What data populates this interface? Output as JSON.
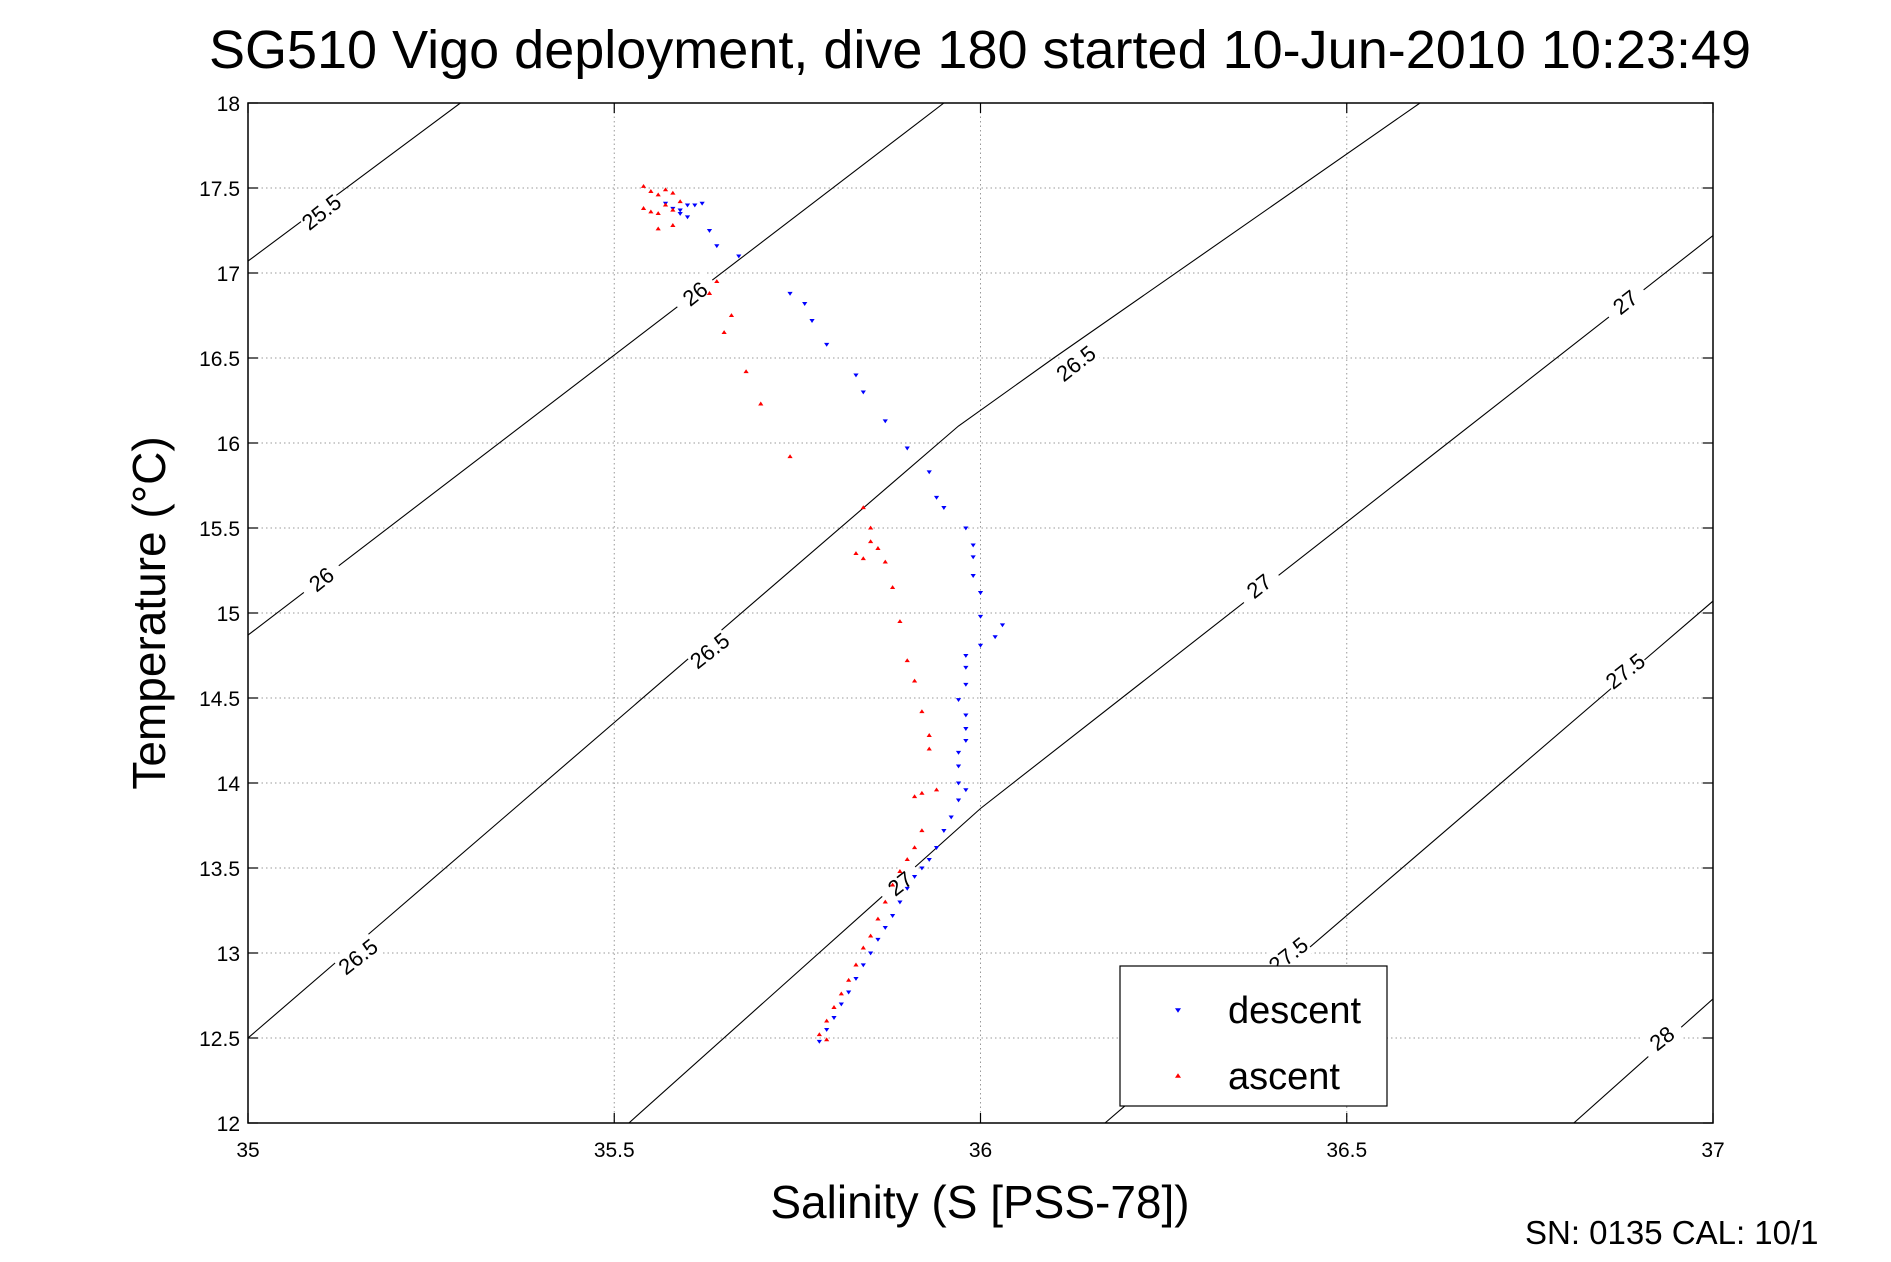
{
  "chart_data": {
    "type": "scatter",
    "title": "SG510 Vigo deployment, dive 180 started 10-Jun-2010 10:23:49",
    "xlabel": "Salinity (S [PSS-78])",
    "ylabel": "Temperature (°C)",
    "xlim": [
      35,
      37
    ],
    "ylim": [
      12,
      18
    ],
    "xticks": [
      "35",
      "35.5",
      "36",
      "36.5",
      "37"
    ],
    "yticks": [
      "12",
      "12.5",
      "13",
      "13.5",
      "14",
      "14.5",
      "15",
      "15.5",
      "16",
      "16.5",
      "17",
      "17.5",
      "18"
    ],
    "grid": true,
    "legend_position": "bottom-right",
    "footer": "SN: 0135  CAL: 10/1",
    "density_contours": [
      {
        "level": "25.5",
        "points": [
          [
            35.0,
            17.07
          ],
          [
            35.29,
            18.0
          ]
        ],
        "labels": [
          {
            "s": 35.1,
            "t": 17.36,
            "text": "25.5"
          }
        ]
      },
      {
        "level": "26",
        "points": [
          [
            35.0,
            14.87
          ],
          [
            35.95,
            18.0
          ]
        ],
        "labels": [
          {
            "s": 35.1,
            "t": 15.2,
            "text": "26"
          },
          {
            "s": 35.61,
            "t": 16.88,
            "text": "26"
          }
        ]
      },
      {
        "level": "26.5",
        "points": [
          [
            35.0,
            12.5
          ],
          [
            35.97,
            16.1
          ],
          [
            36.1,
            16.5
          ],
          [
            36.6,
            18.0
          ]
        ],
        "labels": [
          {
            "s": 35.15,
            "t": 12.98,
            "text": "26.5"
          },
          {
            "s": 35.63,
            "t": 14.78,
            "text": "26.5"
          },
          {
            "s": 36.13,
            "t": 16.47,
            "text": "26.5"
          }
        ]
      },
      {
        "level": "27",
        "points": [
          [
            35.52,
            12.0
          ],
          [
            36.0,
            13.85
          ],
          [
            37.0,
            17.22
          ]
        ],
        "labels": [
          {
            "s": 35.89,
            "t": 13.41,
            "text": "27"
          },
          {
            "s": 36.38,
            "t": 15.16,
            "text": "27"
          },
          {
            "s": 36.88,
            "t": 16.83,
            "text": "27"
          }
        ]
      },
      {
        "level": "27.5",
        "points": [
          [
            36.17,
            12.0
          ],
          [
            37.0,
            15.07
          ]
        ],
        "labels": [
          {
            "s": 36.42,
            "t": 12.99,
            "text": "27.5"
          },
          {
            "s": 36.88,
            "t": 14.66,
            "text": "27.5"
          }
        ]
      },
      {
        "level": "28",
        "points": [
          [
            36.81,
            12.0
          ],
          [
            37.0,
            12.73
          ]
        ],
        "labels": [
          {
            "s": 36.93,
            "t": 12.5,
            "text": "28"
          }
        ]
      }
    ],
    "series": [
      {
        "name": "descent",
        "color": "#0000ff",
        "marker": "triangle-down",
        "points": [
          [
            35.57,
            17.41
          ],
          [
            35.58,
            17.38
          ],
          [
            35.59,
            17.37
          ],
          [
            35.59,
            17.35
          ],
          [
            35.6,
            17.4
          ],
          [
            35.61,
            17.4
          ],
          [
            35.62,
            17.41
          ],
          [
            35.6,
            17.33
          ],
          [
            35.63,
            17.25
          ],
          [
            35.64,
            17.16
          ],
          [
            35.67,
            17.1
          ],
          [
            35.74,
            16.88
          ],
          [
            35.76,
            16.82
          ],
          [
            35.77,
            16.72
          ],
          [
            35.79,
            16.58
          ],
          [
            35.83,
            16.4
          ],
          [
            35.84,
            16.3
          ],
          [
            35.87,
            16.13
          ],
          [
            35.9,
            15.97
          ],
          [
            35.93,
            15.83
          ],
          [
            35.94,
            15.68
          ],
          [
            35.95,
            15.62
          ],
          [
            35.98,
            15.5
          ],
          [
            35.99,
            15.4
          ],
          [
            35.99,
            15.33
          ],
          [
            35.99,
            15.22
          ],
          [
            36.0,
            15.12
          ],
          [
            36.0,
            14.98
          ],
          [
            36.03,
            14.93
          ],
          [
            36.02,
            14.86
          ],
          [
            36.0,
            14.81
          ],
          [
            35.98,
            14.75
          ],
          [
            35.98,
            14.68
          ],
          [
            35.98,
            14.58
          ],
          [
            35.97,
            14.49
          ],
          [
            35.98,
            14.4
          ],
          [
            35.98,
            14.32
          ],
          [
            35.98,
            14.25
          ],
          [
            35.97,
            14.18
          ],
          [
            35.97,
            14.1
          ],
          [
            35.97,
            14.0
          ],
          [
            35.98,
            13.96
          ],
          [
            35.97,
            13.9
          ],
          [
            35.96,
            13.8
          ],
          [
            35.95,
            13.72
          ],
          [
            35.94,
            13.62
          ],
          [
            35.93,
            13.55
          ],
          [
            35.92,
            13.5
          ],
          [
            35.91,
            13.45
          ],
          [
            35.9,
            13.38
          ],
          [
            35.89,
            13.3
          ],
          [
            35.88,
            13.22
          ],
          [
            35.87,
            13.15
          ],
          [
            35.86,
            13.08
          ],
          [
            35.85,
            13.0
          ],
          [
            35.84,
            12.93
          ],
          [
            35.83,
            12.85
          ],
          [
            35.82,
            12.77
          ],
          [
            35.81,
            12.7
          ],
          [
            35.8,
            12.62
          ],
          [
            35.79,
            12.55
          ],
          [
            35.78,
            12.48
          ]
        ]
      },
      {
        "name": "ascent",
        "color": "#ff0000",
        "marker": "triangle-up",
        "points": [
          [
            35.54,
            17.51
          ],
          [
            35.55,
            17.48
          ],
          [
            35.56,
            17.46
          ],
          [
            35.57,
            17.49
          ],
          [
            35.58,
            17.47
          ],
          [
            35.54,
            17.38
          ],
          [
            35.55,
            17.36
          ],
          [
            35.56,
            17.35
          ],
          [
            35.57,
            17.4
          ],
          [
            35.58,
            17.37
          ],
          [
            35.59,
            17.42
          ],
          [
            35.56,
            17.26
          ],
          [
            35.58,
            17.28
          ],
          [
            35.64,
            16.95
          ],
          [
            35.63,
            16.88
          ],
          [
            35.66,
            16.75
          ],
          [
            35.65,
            16.65
          ],
          [
            35.68,
            16.42
          ],
          [
            35.7,
            16.23
          ],
          [
            35.74,
            15.92
          ],
          [
            35.84,
            15.62
          ],
          [
            35.85,
            15.5
          ],
          [
            35.85,
            15.42
          ],
          [
            35.86,
            15.38
          ],
          [
            35.83,
            15.35
          ],
          [
            35.84,
            15.32
          ],
          [
            35.87,
            15.3
          ],
          [
            35.88,
            15.15
          ],
          [
            35.89,
            14.95
          ],
          [
            35.9,
            14.72
          ],
          [
            35.91,
            14.6
          ],
          [
            35.92,
            14.42
          ],
          [
            35.93,
            14.28
          ],
          [
            35.93,
            14.2
          ],
          [
            35.91,
            13.92
          ],
          [
            35.92,
            13.94
          ],
          [
            35.94,
            13.96
          ],
          [
            35.92,
            13.72
          ],
          [
            35.91,
            13.62
          ],
          [
            35.9,
            13.55
          ],
          [
            35.89,
            13.48
          ],
          [
            35.88,
            13.4
          ],
          [
            35.87,
            13.3
          ],
          [
            35.86,
            13.2
          ],
          [
            35.85,
            13.1
          ],
          [
            35.84,
            13.03
          ],
          [
            35.83,
            12.93
          ],
          [
            35.82,
            12.84
          ],
          [
            35.81,
            12.76
          ],
          [
            35.8,
            12.68
          ],
          [
            35.79,
            12.6
          ],
          [
            35.78,
            12.52
          ],
          [
            35.79,
            12.49
          ]
        ]
      }
    ]
  }
}
